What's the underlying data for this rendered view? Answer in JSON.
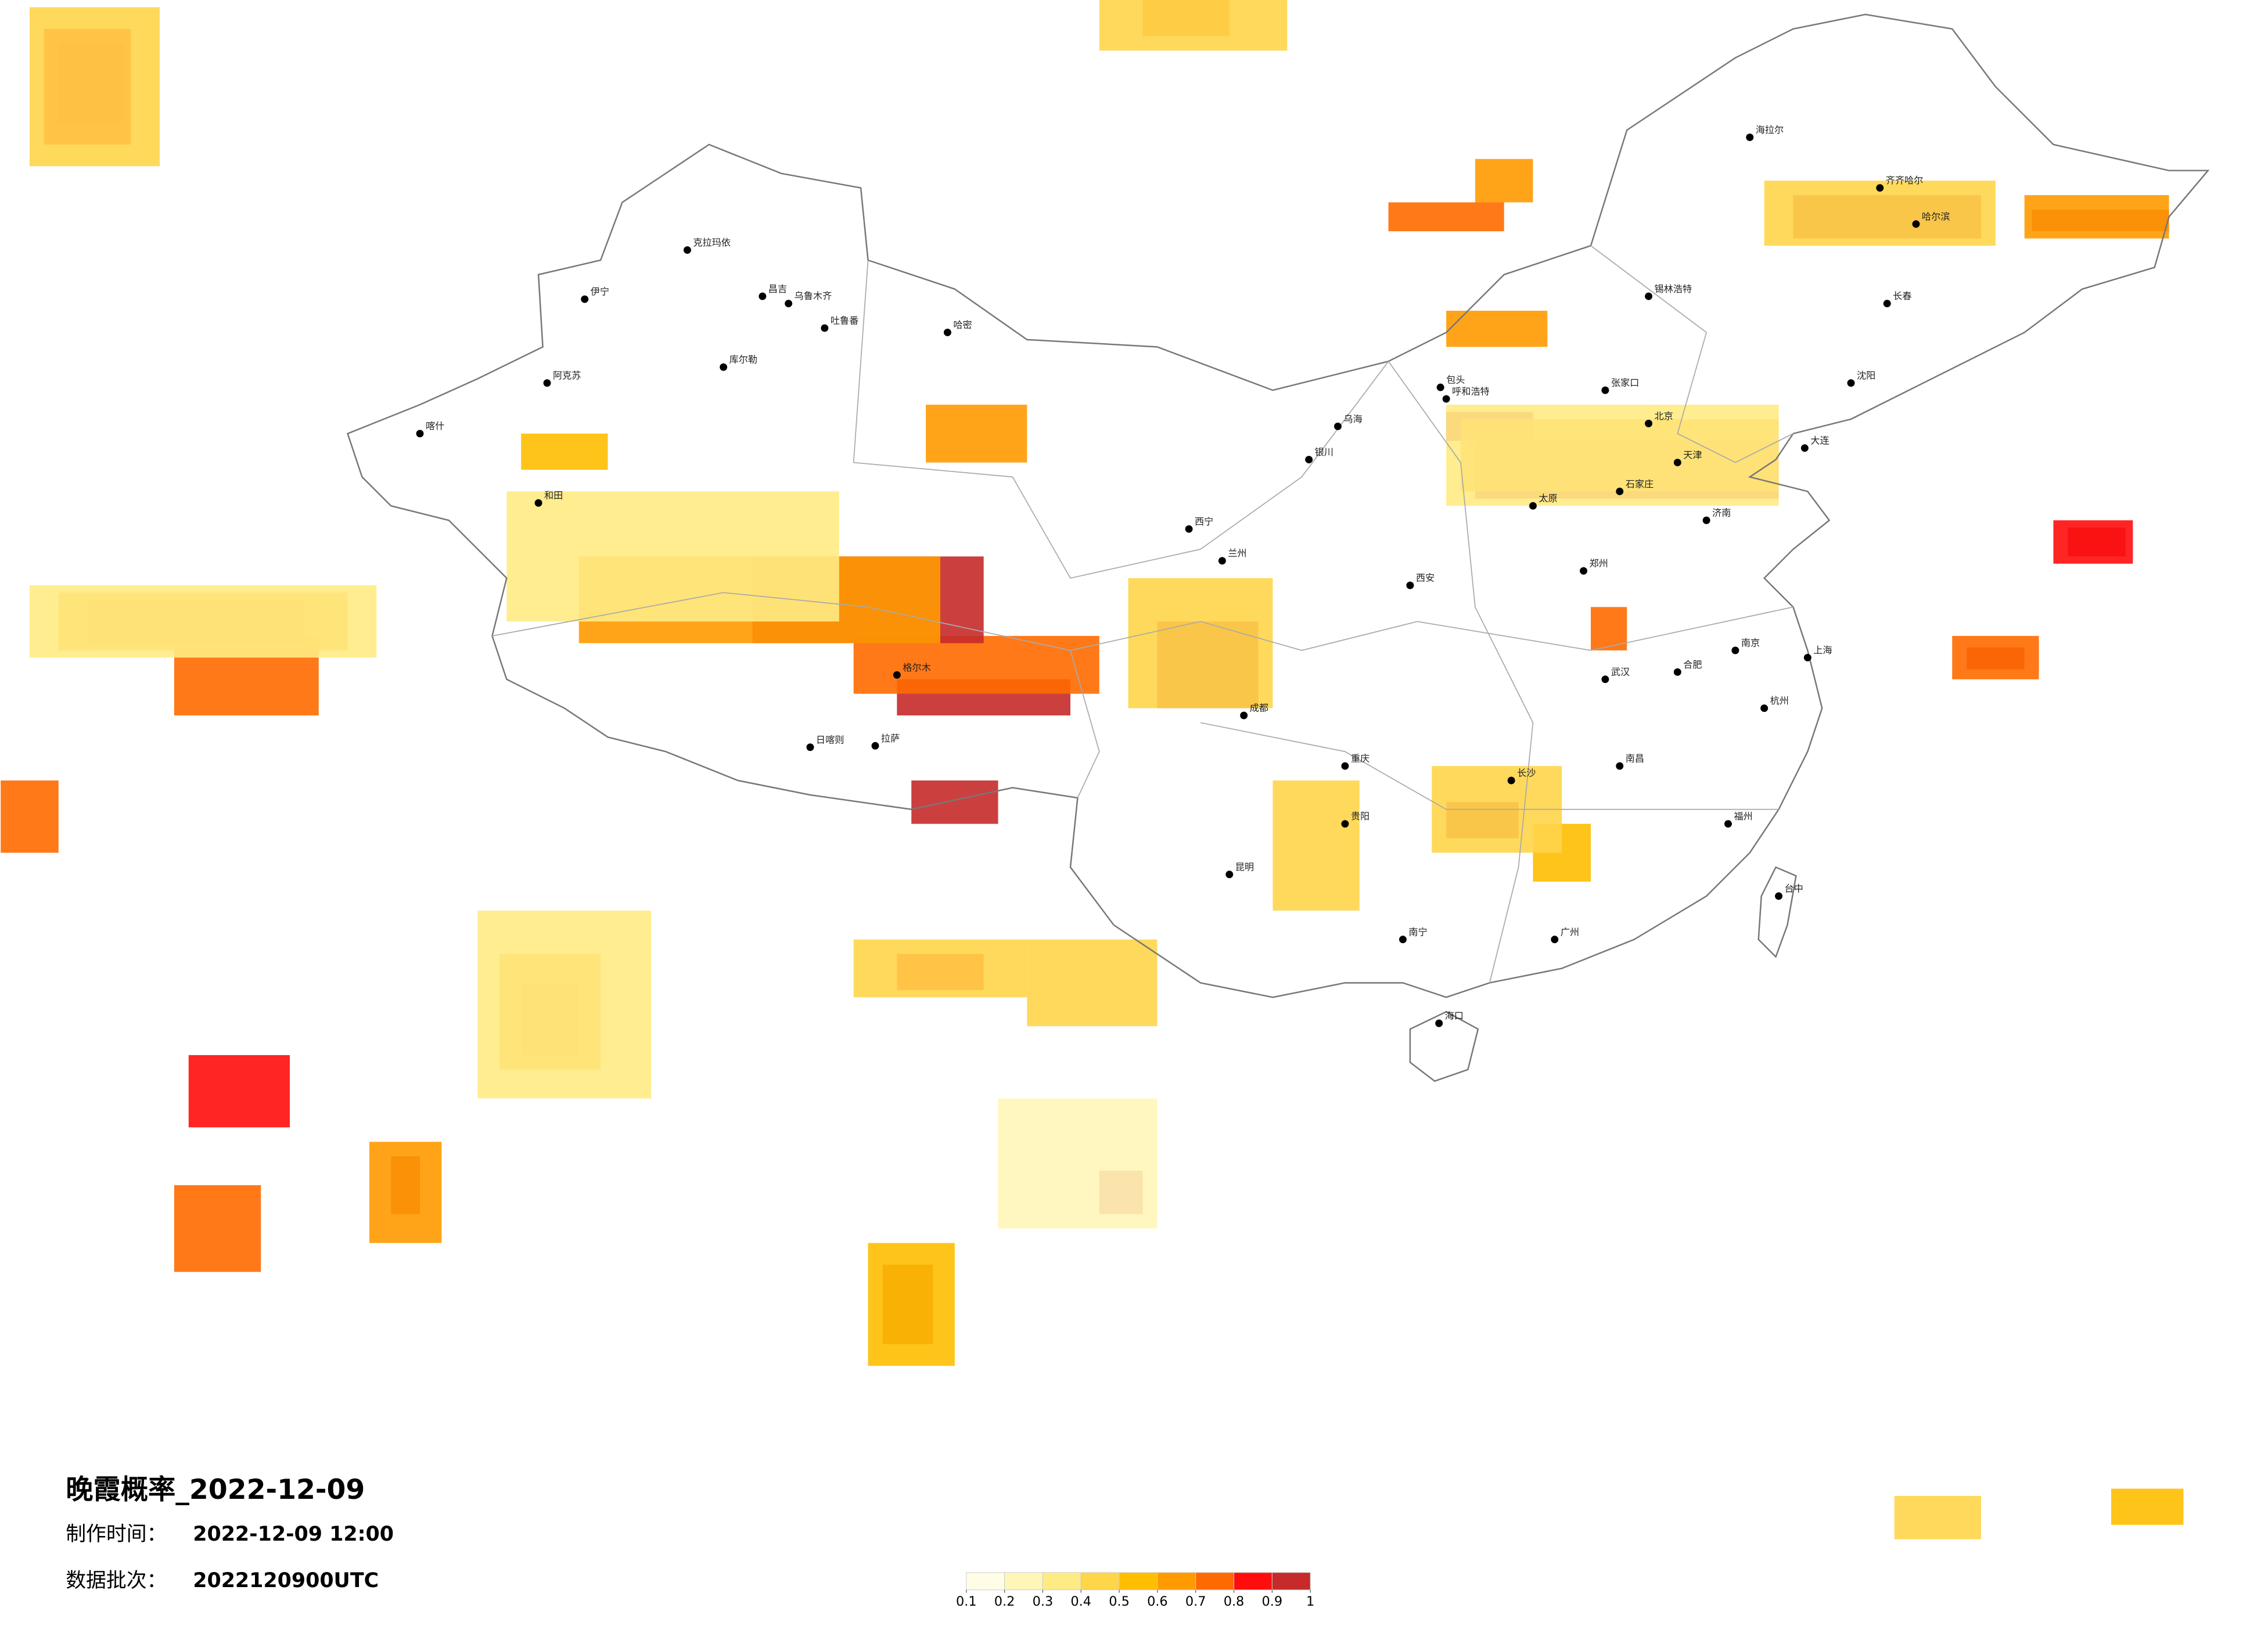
{
  "title": "晚霞概率_2022-12-09",
  "info": [
    {
      "label": "制作时间：",
      "value": "2022-12-09 12:00"
    },
    {
      "label": "数据批次：",
      "value": "2022120900UTC"
    }
  ],
  "legend": {
    "ticks": [
      0.1,
      0.2,
      0.3,
      0.4,
      0.5,
      0.6,
      0.7,
      0.8,
      0.9,
      1
    ],
    "colors": [
      "#fffde6",
      "#fff6b8",
      "#ffeb84",
      "#ffd54a",
      "#ffbe00",
      "#ff9a00",
      "#ff6a00",
      "#ff0d0d",
      "#c62a2a"
    ]
  },
  "cities": [
    "克拉玛依",
    "昌吉",
    "乌鲁木齐",
    "伊宁",
    "阿克苏",
    "喀什",
    "和田",
    "哈密",
    "吐鲁番",
    "库尔勒",
    "格尔木",
    "拉萨",
    "日喀则",
    "西宁",
    "兰州",
    "银川",
    "呼和浩特",
    "包头",
    "北京",
    "天津",
    "石家庄",
    "太原",
    "济南",
    "郑州",
    "西安",
    "成都",
    "重庆",
    "贵阳",
    "昆明",
    "南宁",
    "广州",
    "长沙",
    "武汉",
    "南昌",
    "合肥",
    "南京",
    "上海",
    "杭州",
    "福州",
    "台中",
    "海口",
    "沈阳",
    "长春",
    "哈尔滨",
    "大连",
    "海拉尔",
    "齐齐哈尔",
    "锡林浩特",
    "张家口",
    "乌海"
  ]
}
